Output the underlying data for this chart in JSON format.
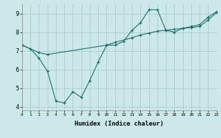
{
  "title": "",
  "xlabel": "Humidex (Indice chaleur)",
  "background_color": "#cce8e8",
  "grid_color": "#aacccc",
  "line_color": "#1a6b6b",
  "x_line1": [
    0,
    1,
    2,
    3,
    4,
    5,
    6,
    7,
    8,
    9,
    10,
    11,
    12,
    13,
    14,
    15,
    16,
    17,
    18,
    19,
    20,
    21,
    22,
    23
  ],
  "y_line1": [
    7.3,
    7.1,
    6.6,
    5.9,
    4.3,
    4.2,
    4.8,
    4.5,
    5.4,
    6.4,
    7.3,
    7.3,
    7.5,
    8.1,
    8.5,
    9.2,
    9.2,
    8.1,
    8.0,
    8.2,
    8.3,
    8.4,
    8.8,
    9.1
  ],
  "x_line2": [
    0,
    2,
    3,
    10,
    11,
    13,
    14,
    15,
    16,
    17,
    18,
    19,
    20,
    21,
    22,
    23
  ],
  "y_line2": [
    7.3,
    6.9,
    6.8,
    7.3,
    7.45,
    7.7,
    7.85,
    7.95,
    8.05,
    8.1,
    8.15,
    8.2,
    8.25,
    8.3,
    8.65,
    9.05
  ],
  "xlim": [
    0,
    23
  ],
  "ylim": [
    3.8,
    9.5
  ],
  "yticks": [
    4,
    5,
    6,
    7,
    8,
    9
  ],
  "xticks": [
    0,
    1,
    2,
    3,
    4,
    5,
    6,
    7,
    8,
    9,
    10,
    11,
    12,
    13,
    14,
    15,
    16,
    17,
    18,
    19,
    20,
    21,
    22,
    23
  ]
}
